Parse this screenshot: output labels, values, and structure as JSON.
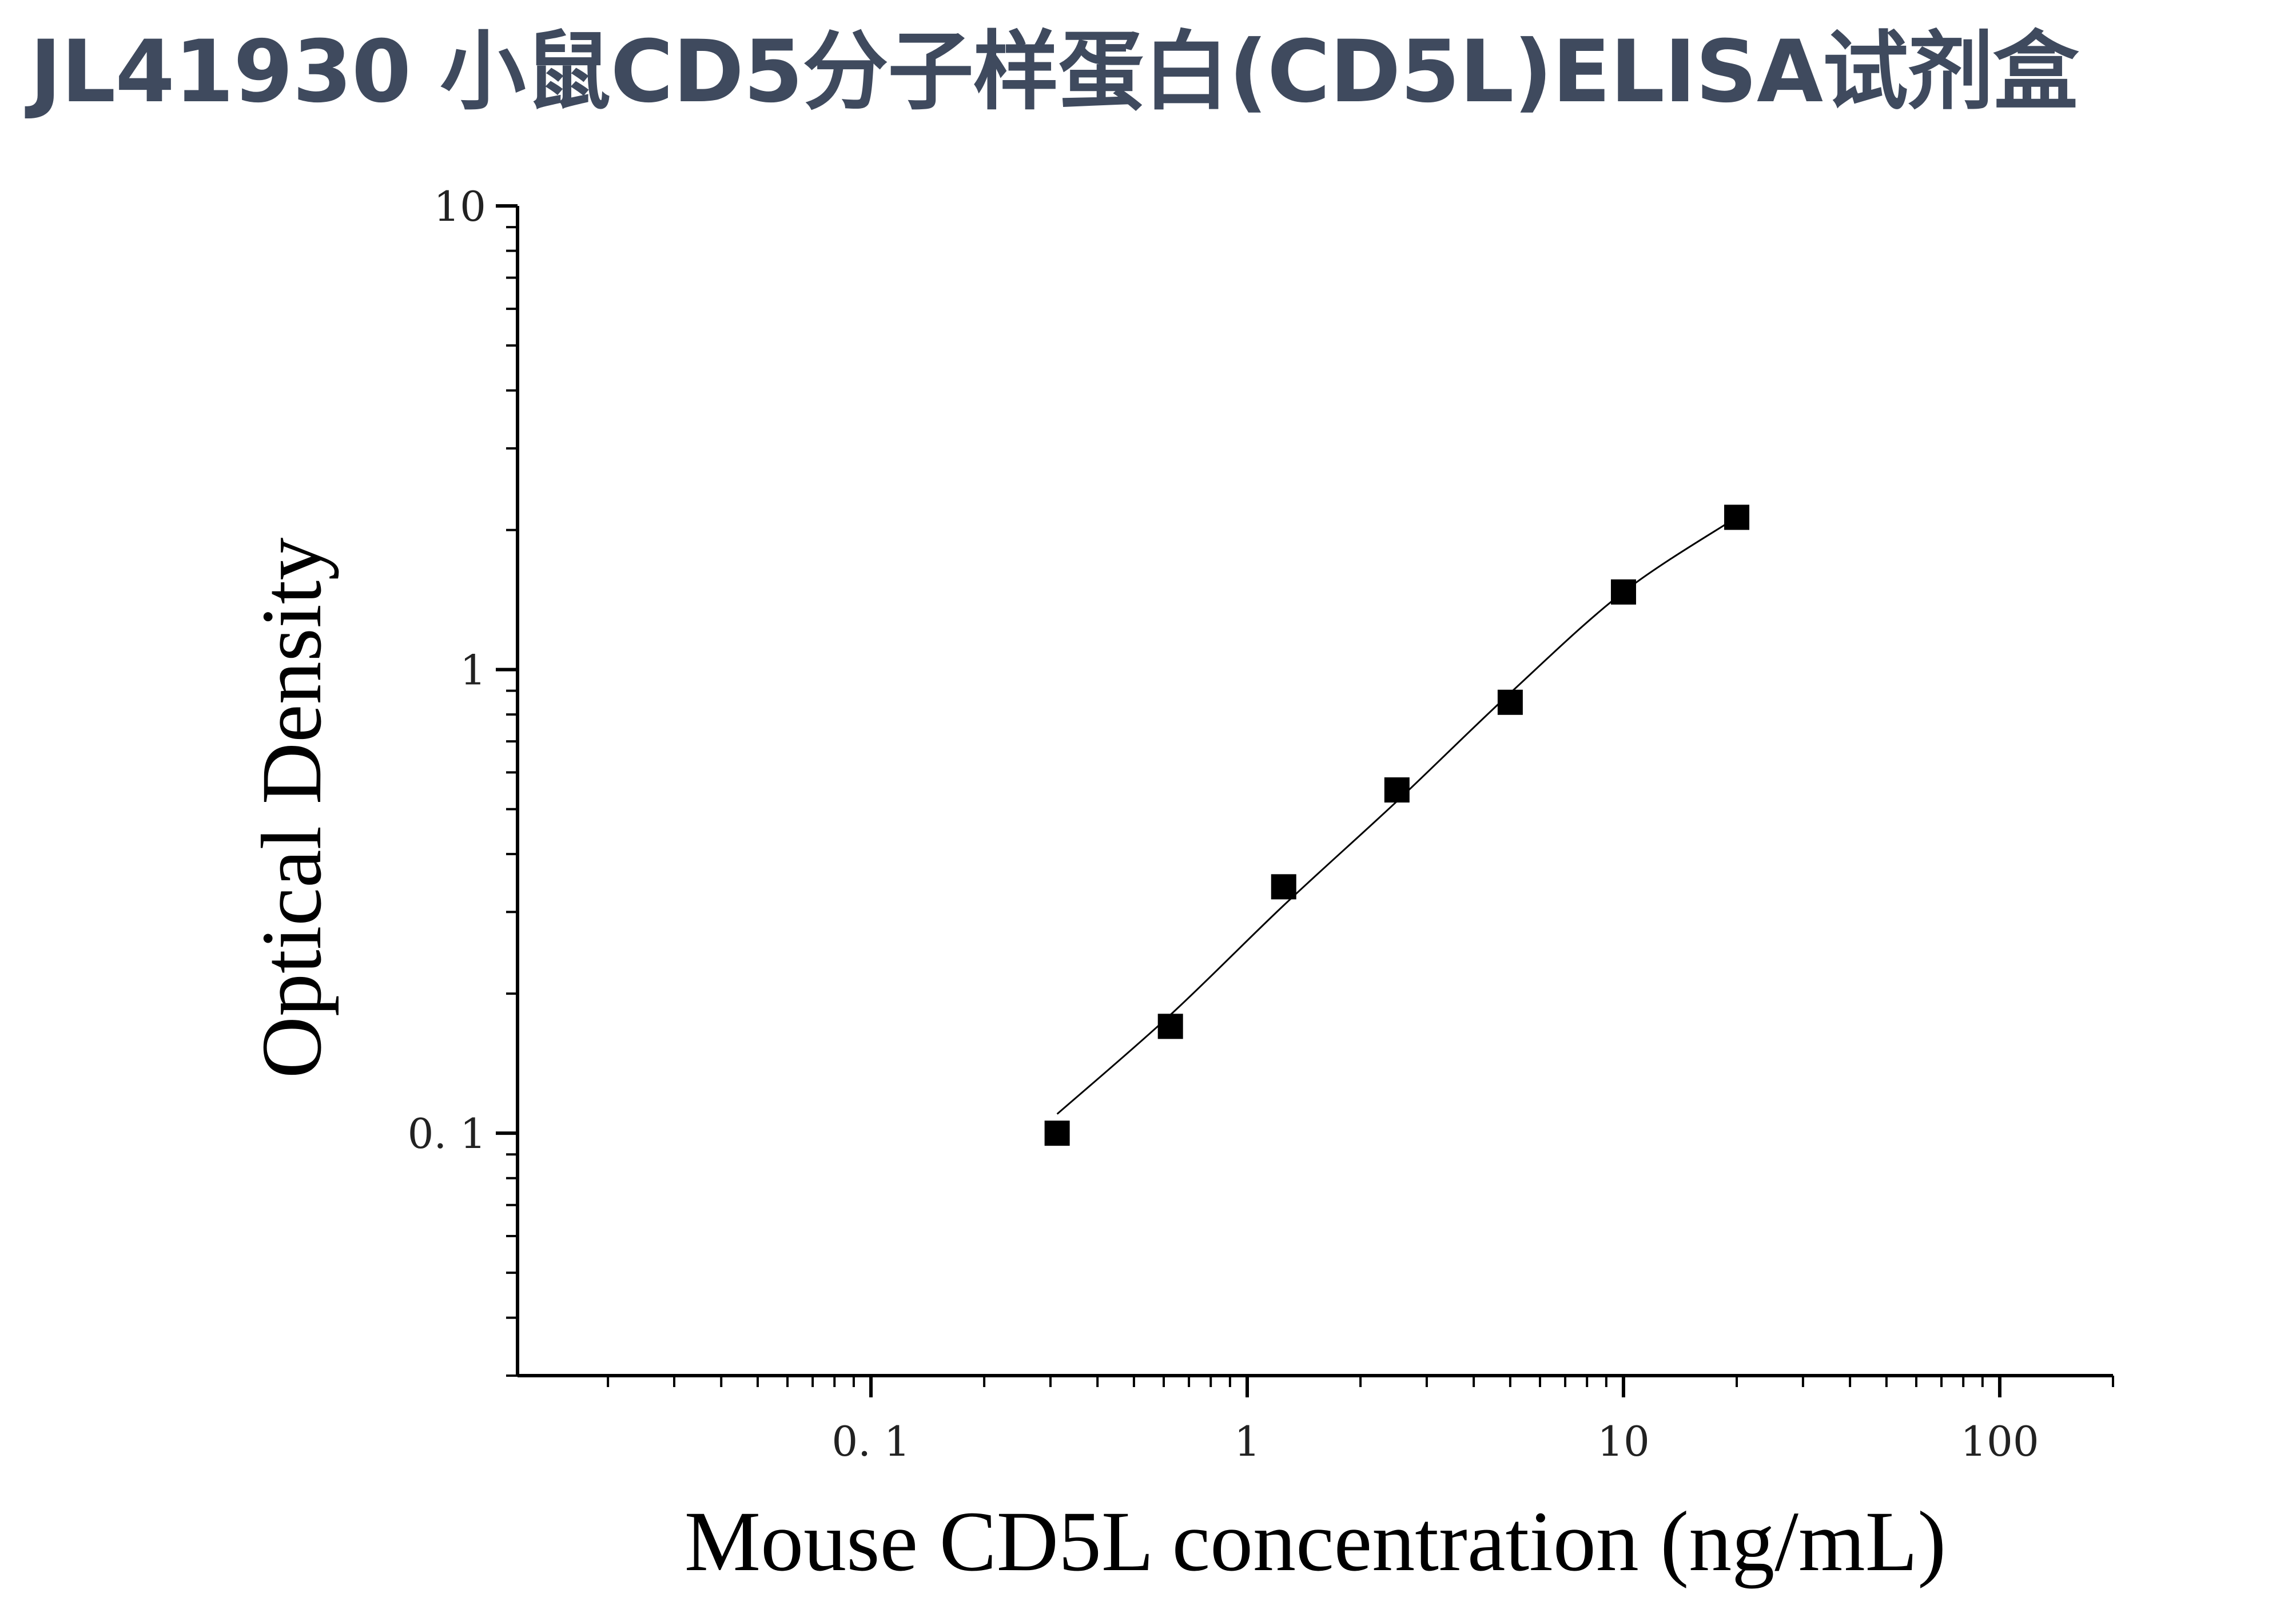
{
  "title": "JL41930 小鼠CD5分子样蛋白(CD5L)ELISA试剂盒",
  "chart_data": {
    "type": "scatter",
    "x_scale": "log",
    "y_scale": "log",
    "xlabel": "Mouse CD5L concentration (ng/mL)",
    "ylabel": "Optical Density",
    "xlim": [
      0.0115,
      200
    ],
    "ylim": [
      0.03,
      10
    ],
    "x_ticks": [
      {
        "value": 0.1,
        "label": "0. 1"
      },
      {
        "value": 1,
        "label": "1"
      },
      {
        "value": 10,
        "label": "10"
      },
      {
        "value": 100,
        "label": "100"
      }
    ],
    "y_ticks": [
      {
        "value": 0.1,
        "label": "0. 1"
      },
      {
        "value": 1,
        "label": "1"
      },
      {
        "value": 10,
        "label": "10"
      }
    ],
    "grid": false,
    "legend": "none",
    "series": [
      {
        "x": [
          0.3125,
          0.625,
          1.25,
          2.5,
          5,
          10,
          20
        ],
        "y": [
          0.1,
          0.17,
          0.34,
          0.55,
          0.85,
          1.47,
          2.13
        ],
        "marker": "square",
        "color": "#000000"
      }
    ],
    "fit_curve": {
      "x": [
        0.3125,
        0.625,
        1.25,
        2.5,
        5,
        10,
        20
      ],
      "y": [
        0.11,
        0.18,
        0.31,
        0.52,
        0.89,
        1.47,
        2.13
      ],
      "color": "#000000"
    }
  }
}
